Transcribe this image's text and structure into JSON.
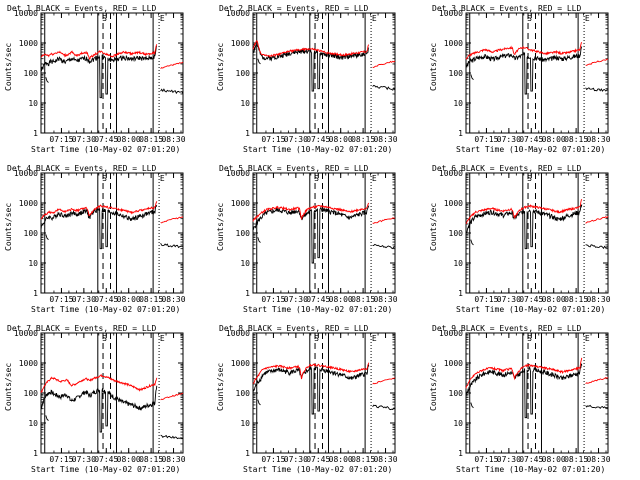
{
  "page": {
    "width": 640,
    "height": 480
  },
  "common": {
    "title_suffix": " BLACK = Events, RED = LLD",
    "ylabel": "Counts/sec",
    "xlabel": "Start Time (10-May-02 07:01:20)",
    "x_ticks": [
      "07:15",
      "07:30",
      "07:45",
      "08:00",
      "08:15",
      "08:30"
    ],
    "y_ticks": [
      "1",
      "10",
      "100",
      "1000",
      "10000"
    ],
    "markers": {
      "s": "S",
      "e": "E"
    },
    "colors": {
      "events": "#000000",
      "lld": "#ff0000"
    }
  },
  "chart_data": [
    {
      "type": "line",
      "title": "Det 1",
      "x_range_min": [
        0,
        95
      ],
      "y_log_range": [
        1,
        10000
      ],
      "seed": 1,
      "lld_base": [
        350,
        380,
        420,
        400,
        380,
        430,
        420,
        450,
        470,
        500,
        480,
        430,
        400,
        380,
        420,
        450,
        500,
        420,
        380,
        400,
        420,
        450,
        470,
        480,
        460,
        300,
        350,
        380,
        420,
        460,
        500,
        520,
        480,
        450,
        420,
        400,
        380,
        360,
        380,
        400,
        450,
        450,
        480,
        500,
        470,
        470,
        450,
        440,
        450,
        460,
        470,
        480,
        460,
        440,
        420,
        430,
        440,
        450,
        460,
        470,
        900
      ],
      "evt_base": [
        120,
        150,
        200,
        220,
        210,
        240,
        230,
        250,
        260,
        300,
        290,
        260,
        240,
        230,
        260,
        280,
        300,
        280,
        250,
        260,
        270,
        290,
        300,
        310,
        300,
        250,
        260,
        280,
        310,
        330,
        350,
        360,
        340,
        320,
        300,
        290,
        280,
        270,
        280,
        290,
        300,
        310,
        320,
        330,
        320,
        310,
        300,
        290,
        300,
        305,
        310,
        320,
        310,
        300,
        290,
        300,
        310,
        320,
        330,
        340,
        800
      ],
      "dips": [
        [
          40,
          15
        ],
        [
          44,
          20
        ]
      ]
    },
    {
      "type": "line",
      "title": "Det 2",
      "x_range_min": [
        0,
        95
      ],
      "y_log_range": [
        1,
        10000
      ],
      "seed": 2,
      "lld_base": [
        600,
        900,
        1200,
        700,
        450,
        420,
        400,
        380,
        360,
        370,
        380,
        390,
        400,
        420,
        430,
        450,
        470,
        500,
        520,
        540,
        550,
        560,
        570,
        580,
        590,
        600,
        610,
        620,
        630,
        640,
        630,
        620,
        600,
        580,
        560,
        540,
        520,
        500,
        480,
        470,
        460,
        450,
        440,
        430,
        420,
        410,
        400,
        400,
        410,
        420,
        430,
        440,
        450,
        460,
        470,
        480,
        490,
        500,
        510,
        520,
        900
      ],
      "evt_base": [
        500,
        700,
        900,
        600,
        380,
        350,
        330,
        320,
        310,
        320,
        330,
        340,
        350,
        360,
        370,
        380,
        400,
        420,
        440,
        460,
        470,
        480,
        490,
        500,
        510,
        520,
        530,
        540,
        550,
        560,
        550,
        540,
        520,
        500,
        480,
        460,
        440,
        420,
        410,
        400,
        390,
        380,
        370,
        360,
        350,
        340,
        330,
        330,
        340,
        350,
        360,
        370,
        380,
        390,
        400,
        410,
        420,
        430,
        440,
        450,
        700
      ],
      "dips": [
        [
          40,
          25
        ],
        [
          44,
          30
        ]
      ]
    },
    {
      "type": "line",
      "title": "Det 3",
      "x_range_min": [
        0,
        95
      ],
      "y_log_range": [
        1,
        10000
      ],
      "seed": 3,
      "lld_base": [
        300,
        350,
        400,
        420,
        450,
        480,
        500,
        520,
        550,
        580,
        600,
        580,
        550,
        520,
        500,
        520,
        550,
        580,
        600,
        620,
        640,
        660,
        680,
        700,
        680,
        400,
        500,
        600,
        650,
        700,
        720,
        680,
        650,
        600,
        580,
        560,
        540,
        520,
        500,
        480,
        460,
        440,
        450,
        460,
        470,
        480,
        490,
        500,
        480,
        460,
        450,
        460,
        470,
        480,
        500,
        520,
        540,
        560,
        580,
        600,
        1100
      ],
      "evt_base": [
        150,
        200,
        250,
        260,
        280,
        300,
        320,
        330,
        340,
        350,
        360,
        340,
        320,
        300,
        290,
        300,
        320,
        340,
        350,
        360,
        370,
        380,
        390,
        400,
        390,
        300,
        320,
        340,
        360,
        380,
        400,
        390,
        380,
        360,
        340,
        330,
        320,
        310,
        300,
        290,
        280,
        270,
        280,
        290,
        300,
        310,
        320,
        330,
        320,
        310,
        300,
        310,
        320,
        330,
        340,
        350,
        360,
        370,
        380,
        390,
        800
      ],
      "dips": [
        [
          40,
          20
        ],
        [
          44,
          25
        ]
      ]
    },
    {
      "type": "line",
      "title": "Det 4",
      "x_range_min": [
        0,
        95
      ],
      "y_log_range": [
        1,
        10000
      ],
      "seed": 4,
      "lld_base": [
        300,
        350,
        400,
        450,
        500,
        480,
        460,
        500,
        550,
        600,
        580,
        560,
        540,
        520,
        550,
        580,
        620,
        600,
        580,
        560,
        600,
        640,
        660,
        680,
        650,
        350,
        450,
        550,
        620,
        700,
        750,
        800,
        780,
        760,
        740,
        720,
        700,
        680,
        660,
        640,
        620,
        600,
        580,
        560,
        540,
        520,
        500,
        480,
        500,
        520,
        540,
        560,
        580,
        600,
        620,
        640,
        660,
        680,
        700,
        720,
        1100
      ],
      "evt_base": [
        150,
        200,
        250,
        300,
        350,
        330,
        310,
        350,
        400,
        450,
        430,
        410,
        390,
        370,
        400,
        430,
        470,
        450,
        430,
        410,
        450,
        490,
        510,
        530,
        500,
        300,
        400,
        500,
        550,
        600,
        620,
        600,
        580,
        560,
        540,
        520,
        500,
        480,
        460,
        440,
        420,
        400,
        380,
        360,
        340,
        320,
        300,
        280,
        300,
        320,
        340,
        360,
        380,
        400,
        420,
        440,
        460,
        480,
        500,
        520,
        900
      ],
      "dips": [
        [
          40,
          30
        ],
        [
          44,
          35
        ]
      ]
    },
    {
      "type": "line",
      "title": "Det 5",
      "x_range_min": [
        0,
        95
      ],
      "y_log_range": [
        1,
        10000
      ],
      "seed": 5,
      "lld_base": [
        250,
        300,
        350,
        400,
        450,
        500,
        550,
        600,
        620,
        640,
        660,
        680,
        700,
        720,
        700,
        680,
        660,
        640,
        620,
        600,
        620,
        640,
        660,
        680,
        660,
        300,
        400,
        500,
        600,
        650,
        700,
        720,
        740,
        760,
        780,
        800,
        780,
        760,
        740,
        720,
        700,
        680,
        660,
        640,
        620,
        600,
        580,
        560,
        540,
        520,
        500,
        520,
        540,
        560,
        580,
        600,
        620,
        640,
        660,
        680,
        1000
      ],
      "evt_base": [
        120,
        170,
        220,
        270,
        320,
        370,
        420,
        470,
        490,
        510,
        530,
        550,
        570,
        590,
        570,
        550,
        530,
        510,
        490,
        470,
        490,
        510,
        530,
        550,
        530,
        300,
        350,
        400,
        450,
        500,
        520,
        540,
        560,
        580,
        600,
        620,
        600,
        580,
        560,
        540,
        520,
        500,
        480,
        460,
        440,
        420,
        400,
        380,
        360,
        340,
        320,
        340,
        360,
        380,
        400,
        420,
        440,
        460,
        480,
        500,
        900
      ],
      "dips": [
        [
          40,
          10
        ],
        [
          44,
          15
        ]
      ]
    },
    {
      "type": "line",
      "title": "Det 6",
      "x_range_min": [
        0,
        95
      ],
      "y_log_range": [
        1,
        10000
      ],
      "seed": 6,
      "lld_base": [
        200,
        260,
        320,
        380,
        440,
        500,
        520,
        540,
        560,
        580,
        600,
        620,
        640,
        660,
        640,
        620,
        600,
        580,
        560,
        540,
        560,
        580,
        600,
        620,
        600,
        300,
        400,
        500,
        580,
        650,
        700,
        740,
        780,
        800,
        780,
        760,
        740,
        720,
        700,
        680,
        660,
        640,
        620,
        600,
        580,
        560,
        540,
        520,
        500,
        520,
        540,
        560,
        580,
        600,
        620,
        640,
        660,
        680,
        700,
        720,
        1400
      ],
      "evt_base": [
        100,
        150,
        200,
        250,
        300,
        350,
        370,
        390,
        410,
        430,
        450,
        470,
        490,
        510,
        490,
        470,
        450,
        430,
        410,
        390,
        410,
        430,
        450,
        470,
        450,
        300,
        350,
        400,
        450,
        500,
        520,
        540,
        560,
        580,
        560,
        540,
        520,
        500,
        480,
        460,
        440,
        420,
        400,
        380,
        360,
        340,
        320,
        300,
        280,
        300,
        320,
        340,
        360,
        380,
        400,
        420,
        440,
        460,
        480,
        500,
        1000
      ],
      "dips": [
        [
          40,
          30
        ],
        [
          44,
          35
        ]
      ]
    },
    {
      "type": "line",
      "title": "Det 7",
      "x_range_min": [
        0,
        95
      ],
      "y_log_range": [
        1,
        10000
      ],
      "seed": 7,
      "lld_base": [
        100,
        140,
        180,
        220,
        260,
        300,
        320,
        300,
        280,
        260,
        240,
        250,
        260,
        270,
        250,
        200,
        180,
        190,
        200,
        220,
        240,
        260,
        280,
        300,
        290,
        250,
        280,
        300,
        320,
        340,
        360,
        380,
        380,
        360,
        340,
        320,
        300,
        280,
        260,
        250,
        240,
        230,
        220,
        210,
        200,
        190,
        180,
        170,
        160,
        150,
        140,
        130,
        130,
        140,
        150,
        160,
        170,
        180,
        190,
        200,
        300
      ],
      "evt_base": [
        30,
        50,
        70,
        90,
        100,
        110,
        100,
        90,
        85,
        80,
        75,
        80,
        85,
        90,
        80,
        60,
        55,
        60,
        65,
        70,
        80,
        90,
        100,
        110,
        100,
        80,
        90,
        100,
        110,
        120,
        130,
        140,
        130,
        120,
        110,
        100,
        90,
        80,
        70,
        65,
        60,
        55,
        50,
        48,
        46,
        44,
        42,
        40,
        38,
        36,
        34,
        32,
        32,
        34,
        36,
        38,
        40,
        42,
        44,
        46,
        200
      ],
      "dips": [
        [
          40,
          5
        ],
        [
          44,
          8
        ]
      ]
    },
    {
      "type": "line",
      "title": "Det 8",
      "x_range_min": [
        0,
        95
      ],
      "y_log_range": [
        1,
        10000
      ],
      "seed": 8,
      "lld_base": [
        200,
        260,
        320,
        400,
        500,
        600,
        650,
        680,
        700,
        720,
        740,
        760,
        780,
        800,
        780,
        760,
        740,
        720,
        700,
        680,
        700,
        720,
        740,
        760,
        740,
        300,
        450,
        600,
        700,
        800,
        850,
        900,
        880,
        860,
        840,
        820,
        800,
        780,
        760,
        740,
        720,
        700,
        680,
        660,
        640,
        620,
        600,
        580,
        560,
        540,
        520,
        500,
        520,
        540,
        560,
        580,
        600,
        620,
        640,
        660,
        1000
      ],
      "evt_base": [
        100,
        150,
        200,
        250,
        300,
        400,
        450,
        480,
        500,
        520,
        540,
        560,
        580,
        600,
        580,
        560,
        540,
        520,
        500,
        480,
        500,
        520,
        540,
        560,
        540,
        300,
        400,
        500,
        550,
        600,
        650,
        700,
        680,
        660,
        640,
        620,
        600,
        580,
        560,
        540,
        520,
        500,
        480,
        460,
        440,
        420,
        400,
        380,
        360,
        340,
        320,
        300,
        320,
        340,
        360,
        380,
        400,
        420,
        440,
        460,
        900
      ],
      "dips": [
        [
          40,
          20
        ],
        [
          44,
          25
        ]
      ]
    },
    {
      "type": "line",
      "title": "Det 9",
      "x_range_min": [
        0,
        95
      ],
      "y_log_range": [
        1,
        10000
      ],
      "seed": 9,
      "lld_base": [
        150,
        200,
        260,
        320,
        380,
        440,
        480,
        520,
        560,
        600,
        620,
        640,
        660,
        680,
        660,
        640,
        620,
        600,
        580,
        560,
        580,
        600,
        620,
        640,
        620,
        300,
        400,
        500,
        600,
        700,
        750,
        800,
        820,
        840,
        820,
        800,
        780,
        760,
        740,
        720,
        700,
        680,
        660,
        640,
        620,
        600,
        580,
        560,
        540,
        520,
        500,
        520,
        540,
        560,
        580,
        600,
        620,
        640,
        660,
        680,
        1500
      ],
      "evt_base": [
        80,
        120,
        160,
        200,
        240,
        280,
        320,
        360,
        400,
        440,
        460,
        480,
        500,
        520,
        500,
        480,
        460,
        440,
        420,
        400,
        420,
        440,
        460,
        480,
        460,
        300,
        350,
        400,
        450,
        500,
        550,
        600,
        620,
        640,
        620,
        600,
        580,
        560,
        540,
        520,
        500,
        480,
        460,
        440,
        420,
        400,
        380,
        360,
        340,
        320,
        300,
        320,
        340,
        360,
        380,
        400,
        420,
        440,
        460,
        480,
        1000
      ],
      "dips": [
        [
          40,
          15
        ],
        [
          44,
          20
        ]
      ]
    }
  ]
}
